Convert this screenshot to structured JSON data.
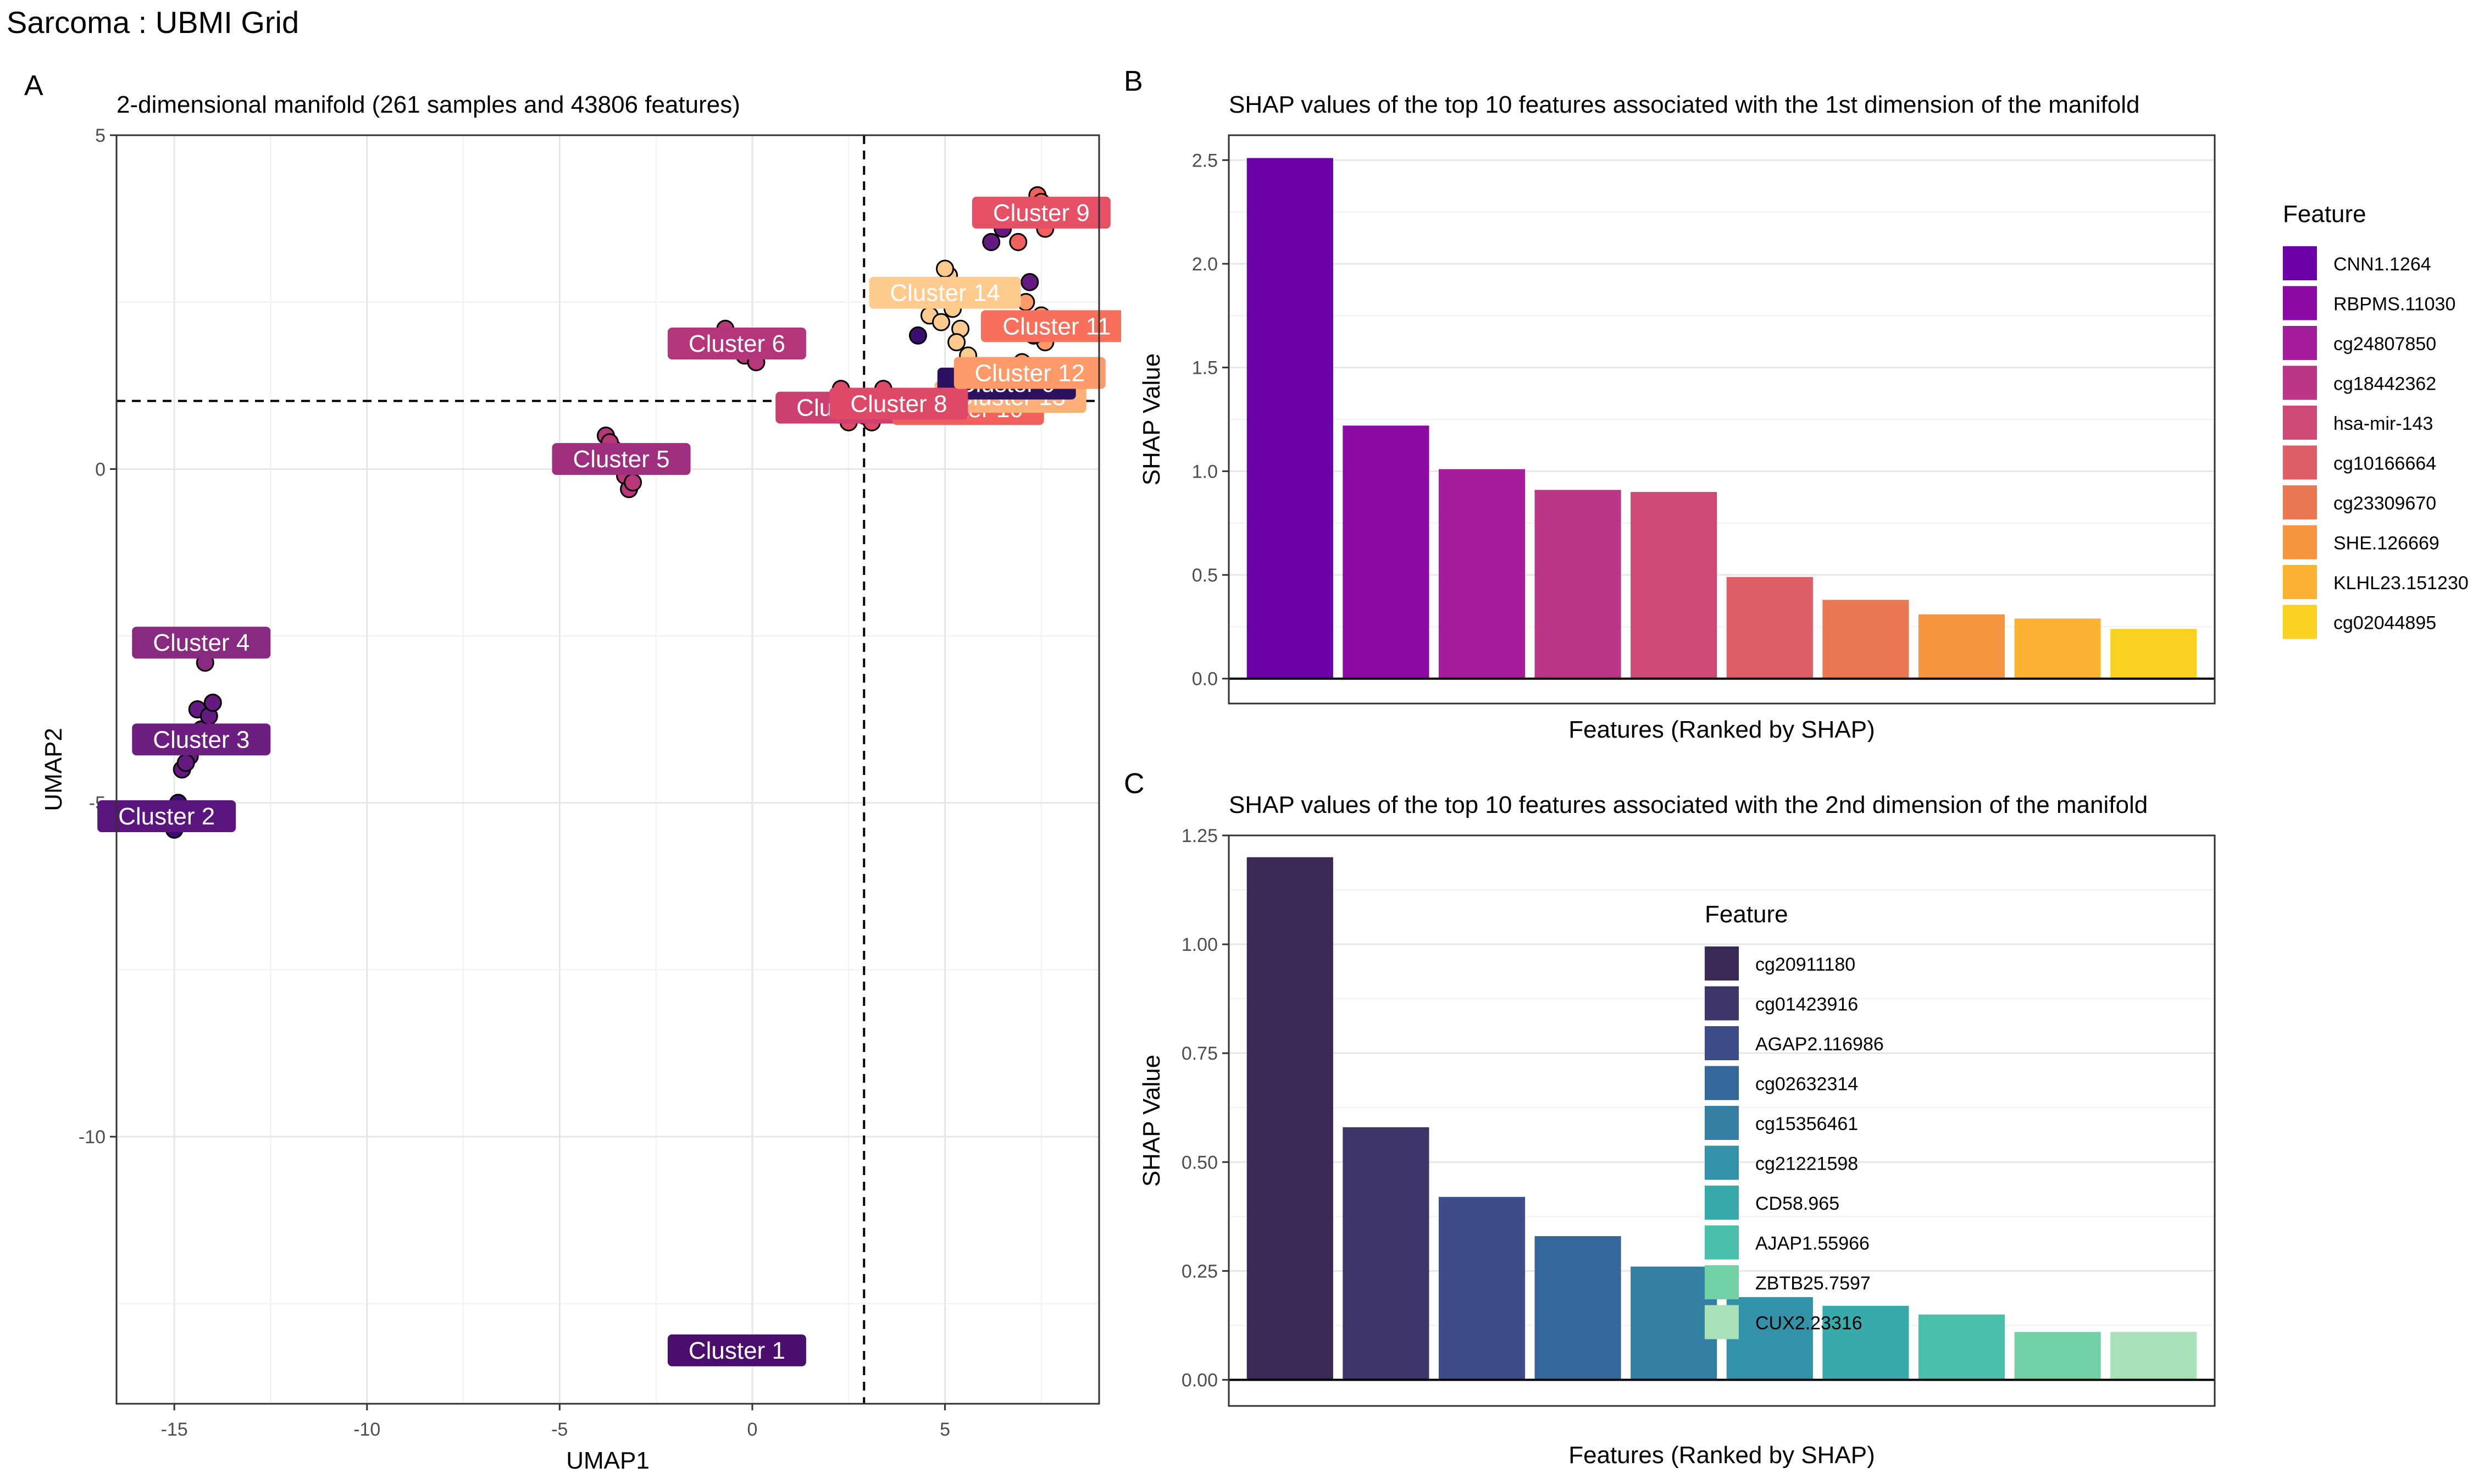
{
  "page": {
    "title": "Sarcoma : UBMI Grid"
  },
  "panels": {
    "a": {
      "tag": "A",
      "title": "2-dimensional manifold (261 samples and 43806 features)",
      "xlabel": "UMAP1",
      "ylabel": "UMAP2"
    },
    "b": {
      "tag": "B",
      "title": "SHAP values of the top 10 features associated with the 1st dimension of the manifold",
      "xlabel": "Features (Ranked by SHAP)",
      "ylabel": "SHAP Value",
      "legend_title": "Feature"
    },
    "c": {
      "tag": "C",
      "title": "SHAP values of the top 10 features associated with the 2nd dimension of the manifold",
      "xlabel": "Features (Ranked by SHAP)",
      "ylabel": "SHAP Value",
      "legend_title": "Feature"
    }
  },
  "chart_data": [
    {
      "type": "scatter",
      "panel": "A",
      "xlim": [
        -16.5,
        9
      ],
      "ylim": [
        -14,
        5
      ],
      "x_ticks": [
        -15,
        -10,
        -5,
        0,
        5
      ],
      "y_ticks": [
        -10,
        -5,
        0,
        5
      ],
      "grid": true,
      "reference_lines": {
        "vertical_x": 2.9,
        "horizontal_y": 1.02
      },
      "points": [
        {
          "x": -15.3,
          "y": -5.3,
          "c": "#3b0f70"
        },
        {
          "x": -15.1,
          "y": -5.2,
          "c": "#3b0f70"
        },
        {
          "x": -14.9,
          "y": -5.0,
          "c": "#3b0f70"
        },
        {
          "x": -15.4,
          "y": -5.1,
          "c": "#3b0f70"
        },
        {
          "x": -15.0,
          "y": -5.4,
          "c": "#3b0f70"
        },
        {
          "x": -14.8,
          "y": -4.5,
          "c": "#641a80"
        },
        {
          "x": -14.6,
          "y": -4.3,
          "c": "#641a80"
        },
        {
          "x": -14.5,
          "y": -4.1,
          "c": "#641a80"
        },
        {
          "x": -14.3,
          "y": -3.9,
          "c": "#641a80"
        },
        {
          "x": -14.4,
          "y": -3.6,
          "c": "#641a80"
        },
        {
          "x": -14.1,
          "y": -3.7,
          "c": "#641a80"
        },
        {
          "x": -14.0,
          "y": -3.5,
          "c": "#641a80"
        },
        {
          "x": -14.7,
          "y": -4.4,
          "c": "#641a80"
        },
        {
          "x": -14.2,
          "y": -4.0,
          "c": "#641a80"
        },
        {
          "x": -14.2,
          "y": -2.9,
          "c": "#8c2981"
        },
        {
          "x": -14.3,
          "y": -2.5,
          "c": "#8c2981"
        },
        {
          "x": -3.8,
          "y": 0.5,
          "c": "#b73779"
        },
        {
          "x": -3.6,
          "y": 0.3,
          "c": "#b73779"
        },
        {
          "x": -3.5,
          "y": 0.1,
          "c": "#b73779"
        },
        {
          "x": -3.3,
          "y": -0.1,
          "c": "#b73779"
        },
        {
          "x": -3.2,
          "y": -0.3,
          "c": "#b73779"
        },
        {
          "x": -3.4,
          "y": 0.2,
          "c": "#b73779"
        },
        {
          "x": -3.7,
          "y": 0.4,
          "c": "#b73779"
        },
        {
          "x": -3.1,
          "y": -0.2,
          "c": "#b73779"
        },
        {
          "x": -0.7,
          "y": 2.1,
          "c": "#b73779"
        },
        {
          "x": -0.5,
          "y": 1.9,
          "c": "#b73779"
        },
        {
          "x": -0.2,
          "y": 1.7,
          "c": "#b73779"
        },
        {
          "x": 0.1,
          "y": 1.6,
          "c": "#b73779"
        },
        {
          "x": -0.3,
          "y": 1.8,
          "c": "#b73779"
        },
        {
          "x": 2.3,
          "y": 1.2,
          "c": "#de4968"
        },
        {
          "x": 2.6,
          "y": 0.9,
          "c": "#de4968"
        },
        {
          "x": 2.5,
          "y": 0.7,
          "c": "#de4968"
        },
        {
          "x": 2.9,
          "y": 0.8,
          "c": "#de4968"
        },
        {
          "x": 3.2,
          "y": 0.9,
          "c": "#de4968"
        },
        {
          "x": 3.5,
          "y": 1.0,
          "c": "#de4968"
        },
        {
          "x": 3.4,
          "y": 1.2,
          "c": "#de4968"
        },
        {
          "x": 3.1,
          "y": 0.7,
          "c": "#de4968"
        },
        {
          "x": 4.3,
          "y": 2.0,
          "c": "#3b0f70"
        },
        {
          "x": 4.6,
          "y": 2.3,
          "c": "#feca8d"
        },
        {
          "x": 4.8,
          "y": 2.6,
          "c": "#feca8d"
        },
        {
          "x": 5.1,
          "y": 2.9,
          "c": "#feca8d"
        },
        {
          "x": 5.2,
          "y": 2.4,
          "c": "#feca8d"
        },
        {
          "x": 5.4,
          "y": 2.1,
          "c": "#feca8d"
        },
        {
          "x": 5.3,
          "y": 1.9,
          "c": "#feca8d"
        },
        {
          "x": 5.6,
          "y": 1.7,
          "c": "#feca8d"
        },
        {
          "x": 5.0,
          "y": 3.0,
          "c": "#feca8d"
        },
        {
          "x": 4.9,
          "y": 2.2,
          "c": "#feca8d"
        },
        {
          "x": 5.7,
          "y": 1.3,
          "c": "#3b0f70"
        },
        {
          "x": 6.1,
          "y": 1.1,
          "c": "#3b0f70"
        },
        {
          "x": 5.9,
          "y": 1.2,
          "c": "#3b0f70"
        },
        {
          "x": 5.2,
          "y": 1.0,
          "c": "#fd9a6a"
        },
        {
          "x": 5.6,
          "y": 0.9,
          "c": "#fd9a6a"
        },
        {
          "x": 6.8,
          "y": 1.1,
          "c": "#fcfdbf"
        },
        {
          "x": 7.1,
          "y": 1.0,
          "c": "#fcfdbf"
        },
        {
          "x": 6.2,
          "y": 3.4,
          "c": "#641a80"
        },
        {
          "x": 6.5,
          "y": 3.6,
          "c": "#641a80"
        },
        {
          "x": 7.2,
          "y": 2.8,
          "c": "#641a80"
        },
        {
          "x": 6.9,
          "y": 3.4,
          "c": "#f1605d"
        },
        {
          "x": 7.6,
          "y": 3.6,
          "c": "#f1605d"
        },
        {
          "x": 7.4,
          "y": 4.1,
          "c": "#f1605d"
        },
        {
          "x": 7.5,
          "y": 4.0,
          "c": "#f1605d"
        },
        {
          "x": 7.8,
          "y": 3.9,
          "c": "#f1605d"
        },
        {
          "x": 7.1,
          "y": 2.5,
          "c": "#fd9a6a"
        },
        {
          "x": 7.5,
          "y": 2.3,
          "c": "#fd9a6a"
        },
        {
          "x": 7.8,
          "y": 2.1,
          "c": "#fd9a6a"
        },
        {
          "x": 7.6,
          "y": 1.9,
          "c": "#fd9a6a"
        },
        {
          "x": 8.0,
          "y": 2.2,
          "c": "#fd9a6a"
        },
        {
          "x": 7.3,
          "y": 2.0,
          "c": "#3b0f70"
        },
        {
          "x": 7.0,
          "y": 1.6,
          "c": "#fd9a6a"
        },
        {
          "x": 7.4,
          "y": 1.5,
          "c": "#fd9a6a"
        }
      ],
      "labels": [
        {
          "text": "Cluster 1",
          "x": -0.4,
          "y": -13.2,
          "fill": "#4a0f6e",
          "fg": "#ffffff"
        },
        {
          "text": "Cluster 2",
          "x": -15.2,
          "y": -5.2,
          "fill": "#5a167e",
          "fg": "#ffffff"
        },
        {
          "text": "Cluster 3",
          "x": -14.3,
          "y": -4.05,
          "fill": "#6c1f80",
          "fg": "#ffffff"
        },
        {
          "text": "Cluster 4",
          "x": -14.3,
          "y": -2.6,
          "fill": "#872a80",
          "fg": "#ffffff"
        },
        {
          "text": "Cluster 5",
          "x": -3.4,
          "y": 0.15,
          "fill": "#9e2f7f",
          "fg": "#ffffff"
        },
        {
          "text": "Cluster 6",
          "x": -0.4,
          "y": 1.88,
          "fill": "#b3367a",
          "fg": "#ffffff"
        },
        {
          "text": "Cluster 7",
          "x": 2.4,
          "y": 0.92,
          "fill": "#cc3f71",
          "fg": "#ffffff"
        },
        {
          "text": "Cluster 10",
          "x": 5.6,
          "y": 0.9,
          "fill": "#f1605d",
          "fg": "#ffffff"
        },
        {
          "text": "Cluster 13",
          "x": 6.7,
          "y": 1.08,
          "fill": "#feae77",
          "fg": "#ffffff"
        },
        {
          "text": "Cluster 0",
          "x": 6.6,
          "y": 1.28,
          "fill": "#2c115f",
          "fg": "#ffffff"
        },
        {
          "text": "Cluster 8",
          "x": 3.8,
          "y": 0.98,
          "fill": "#de4968",
          "fg": "#ffffff"
        },
        {
          "text": "Cluster 12",
          "x": 7.2,
          "y": 1.44,
          "fill": "#fd9a6a",
          "fg": "#ffffff"
        },
        {
          "text": "Cluster 11",
          "x": 7.9,
          "y": 2.14,
          "fill": "#f7705c",
          "fg": "#ffffff"
        },
        {
          "text": "Cluster 14",
          "x": 5.0,
          "y": 2.64,
          "fill": "#feca8d",
          "fg": "#ffffff"
        },
        {
          "text": "Cluster 9",
          "x": 7.5,
          "y": 3.84,
          "fill": "#e55064",
          "fg": "#ffffff"
        }
      ]
    },
    {
      "type": "bar",
      "panel": "B",
      "ylim": [
        -0.12,
        2.62
      ],
      "y_ticks": [
        0.0,
        0.5,
        1.0,
        1.5,
        2.0,
        2.5
      ],
      "y_tick_labels": [
        "0.0",
        "0.5",
        "1.0",
        "1.5",
        "2.0",
        "2.5"
      ],
      "grid": true,
      "legend_position": "right",
      "categories": [
        "CNN1.1264",
        "RBPMS.11030",
        "cg24807850",
        "cg18442362",
        "hsa-mir-143",
        "cg10166664",
        "cg23309670",
        "SHE.126669",
        "KLHL23.151230",
        "cg02044895"
      ],
      "values": [
        2.51,
        1.22,
        1.01,
        0.91,
        0.9,
        0.49,
        0.38,
        0.31,
        0.29,
        0.24
      ],
      "colors": [
        "#6a00a8",
        "#8b0aa5",
        "#a41e9a",
        "#bc3587",
        "#cd4a76",
        "#dd5e66",
        "#ec7853",
        "#f89540",
        "#fcb232",
        "#f9d221"
      ]
    },
    {
      "type": "bar",
      "panel": "C",
      "ylim": [
        -0.06,
        1.25
      ],
      "y_ticks": [
        0.0,
        0.25,
        0.5,
        0.75,
        1.0,
        1.25
      ],
      "y_tick_labels": [
        "0.00",
        "0.25",
        "0.50",
        "0.75",
        "1.00",
        "1.25"
      ],
      "grid": true,
      "legend_position": "right",
      "categories": [
        "cg20911180",
        "cg01423916",
        "AGAP2.116986",
        "cg02632314",
        "cg15356461",
        "cg21221598",
        "CD58.965",
        "AJAP1.55966",
        "ZBTB25.7597",
        "CUX2.23316"
      ],
      "values": [
        1.2,
        0.58,
        0.42,
        0.33,
        0.26,
        0.19,
        0.17,
        0.15,
        0.11,
        0.11
      ],
      "colors": [
        "#382a54",
        "#3e356b",
        "#3e4c8a",
        "#35679a",
        "#347fa4",
        "#3392a8",
        "#38aaac",
        "#48c0aa",
        "#73d2a5",
        "#a8e0b7"
      ]
    }
  ]
}
